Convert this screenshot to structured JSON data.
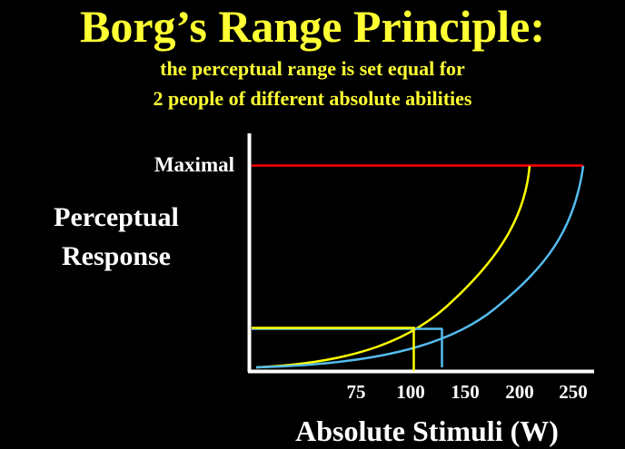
{
  "slide": {
    "title": "Borg’s Range Principle:",
    "subtitle_line1": "the perceptual range is set equal for",
    "subtitle_line2": "2 people of different absolute abilities"
  },
  "colors": {
    "background": "#000000",
    "title": "#ffff33",
    "maximal_line": "#ff0000",
    "curve_yellow": "#ffff00",
    "curve_blue": "#55bbee",
    "axes": "#ffffff",
    "text": "#ffffff"
  },
  "chart_data": {
    "type": "line",
    "title": "",
    "ylabel_line1": "Perceptual",
    "ylabel_line2": "Response",
    "xlabel": "Absolute Stimuli (W)",
    "y_marker_label": "Maximal",
    "x_tick_labels": [
      "75",
      "100",
      "150",
      "200",
      "250"
    ],
    "y_ticks_shown": false,
    "grid": false,
    "legend": "none",
    "x_scale": "nonlinear"
  }
}
